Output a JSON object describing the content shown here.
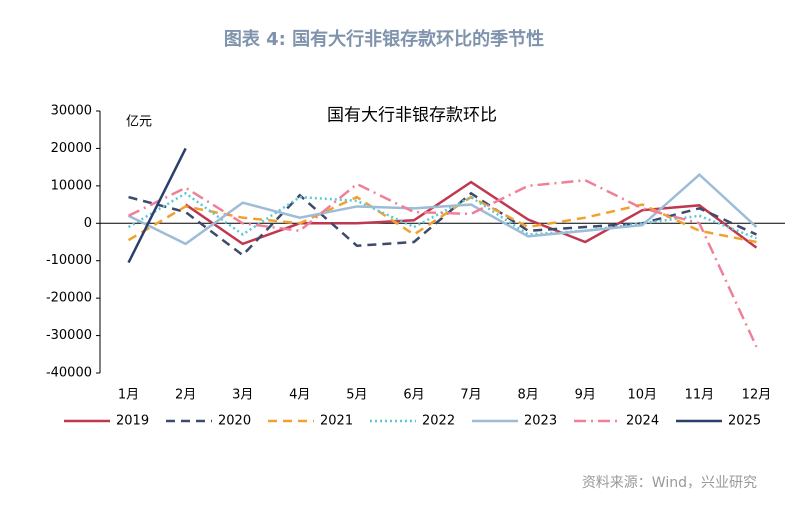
{
  "chart_data": {
    "type": "line",
    "caption": "图表 4:   国有大行非银存款环比的季节性",
    "title": "国有大行非银存款环比",
    "y_label": "亿元",
    "source": "资料来源：Wind，兴业研究",
    "categories": [
      "1月",
      "2月",
      "3月",
      "4月",
      "5月",
      "6月",
      "7月",
      "8月",
      "9月",
      "10月",
      "11月",
      "12月"
    ],
    "ylim": [
      -40000,
      30000
    ],
    "yticks": [
      -40000,
      -30000,
      -20000,
      -10000,
      0,
      10000,
      20000,
      30000
    ],
    "grid": false,
    "legend": "bottom",
    "series": [
      {
        "name": "2019",
        "color": "#c0384f",
        "dash": "solid",
        "values": [
          null,
          5000,
          -5500,
          0,
          0,
          800,
          11000,
          1000,
          -5000,
          3500,
          4800,
          -6500
        ]
      },
      {
        "name": "2020",
        "color": "#3c4a6b",
        "dash": "dashed",
        "values": [
          7000,
          3000,
          -8500,
          7500,
          -6000,
          -5000,
          8000,
          -2000,
          -1000,
          0,
          4000,
          -3000
        ]
      },
      {
        "name": "2021",
        "color": "#f0a22e",
        "dash": "dashed",
        "values": [
          -4500,
          4500,
          1500,
          0,
          7000,
          -3000,
          7000,
          -1000,
          1500,
          5000,
          -2000,
          -5000
        ]
      },
      {
        "name": "2022",
        "color": "#5bc8d6",
        "dash": "dotted",
        "values": [
          -1000,
          8000,
          -3000,
          7000,
          6000,
          -1000,
          7000,
          -3000,
          -2000,
          0,
          2000,
          -4000
        ]
      },
      {
        "name": "2023",
        "color": "#9dbcd8",
        "dash": "solid",
        "values": [
          2000,
          -5500,
          5500,
          1500,
          4500,
          4000,
          5000,
          -3500,
          -2000,
          -500,
          13000,
          -1000
        ]
      },
      {
        "name": "2024",
        "color": "#f08097",
        "dash": "dashdot",
        "values": [
          2000,
          9500,
          0,
          -2000,
          10500,
          3000,
          2500,
          10000,
          11500,
          4000,
          0,
          -33000
        ]
      },
      {
        "name": "2025",
        "color": "#2a3f6e",
        "dash": "solid",
        "values": [
          -10500,
          20000,
          null,
          null,
          null,
          null,
          null,
          null,
          null,
          null,
          null,
          null
        ]
      }
    ]
  }
}
